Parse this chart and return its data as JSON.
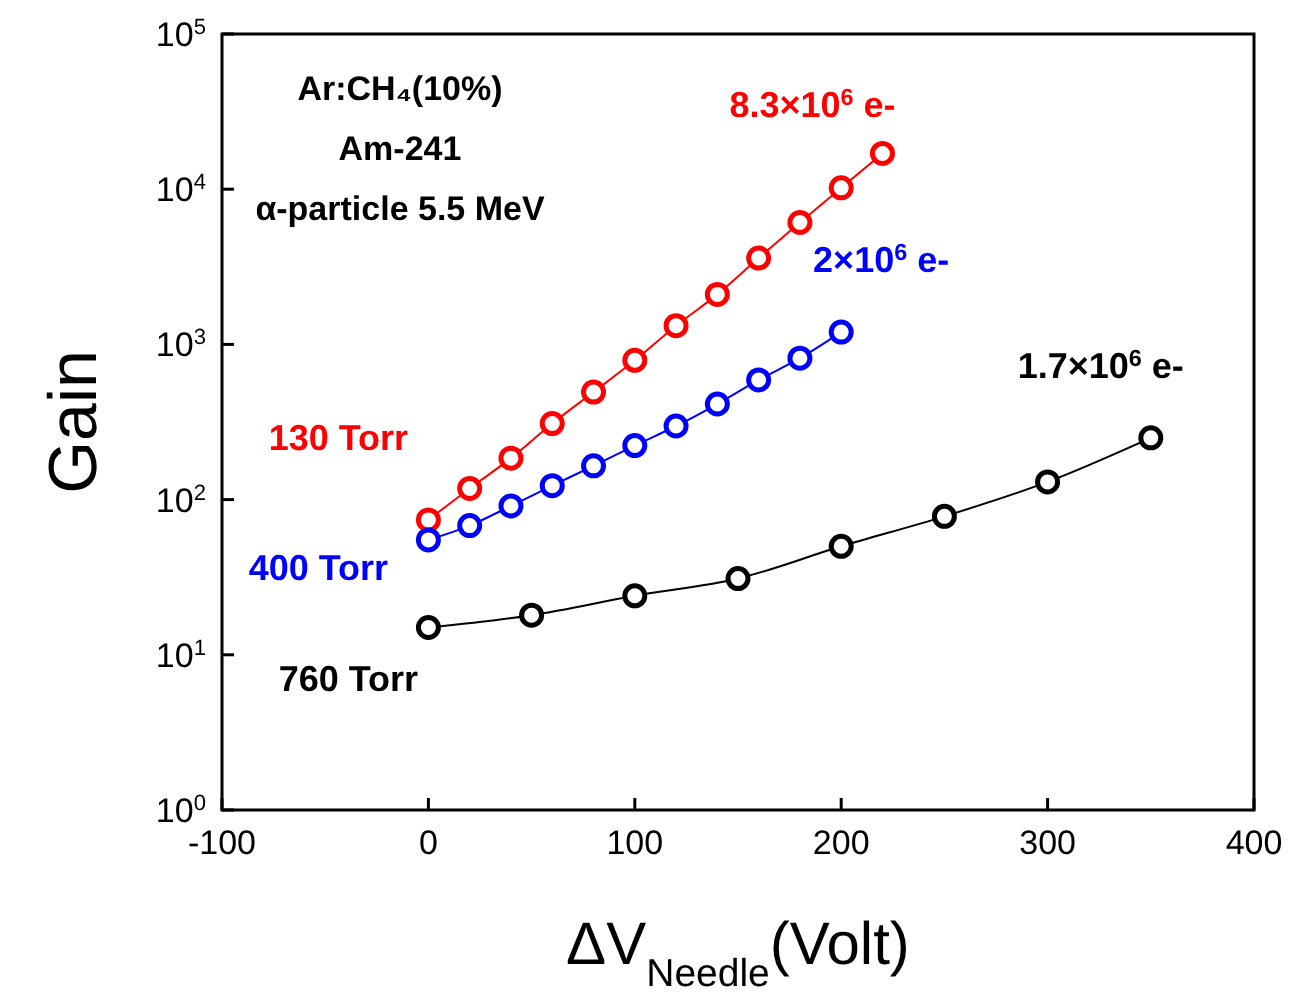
{
  "chart_data": {
    "type": "line",
    "xlabel": "ΔV$_{Needle}$(Volt)",
    "ylabel": "Gain",
    "log": "y",
    "marker": "circle",
    "line_style": "solid",
    "grid": false,
    "xlim": [
      -100,
      400
    ],
    "xticks": [
      -100,
      0,
      100,
      200,
      300,
      400
    ],
    "ylim": [
      1,
      100000
    ],
    "yticks": [
      {
        "value": 1,
        "label": "10$^{0}$"
      },
      {
        "value": 10,
        "label": "10$^{1}$"
      },
      {
        "value": 100,
        "label": "10$^{2}$"
      },
      {
        "value": 1000,
        "label": "10$^{3}$"
      },
      {
        "value": 10000,
        "label": "10$^{4}$"
      },
      {
        "value": 100000,
        "label": "10$^{5}$"
      }
    ],
    "series": [
      {
        "name": "130 Torr",
        "color": "#ff0000",
        "x": [
          0,
          20,
          40,
          60,
          80,
          100,
          120,
          140,
          160,
          180,
          200,
          220
        ],
        "values": [
          74,
          118,
          185,
          309,
          493,
          790,
          1320,
          2100,
          3600,
          6100,
          10200,
          17000
        ]
      },
      {
        "name": "400 Torr",
        "color": "#0000ff",
        "x": [
          0,
          20,
          40,
          60,
          80,
          100,
          120,
          140,
          160,
          180,
          200
        ],
        "values": [
          55,
          68,
          91,
          123,
          165,
          223,
          298,
          413,
          590,
          815,
          1200
        ]
      },
      {
        "name": "760 Torr",
        "color": "#000000",
        "x": [
          0,
          50,
          100,
          150,
          200,
          250,
          300,
          350
        ],
        "values": [
          15,
          18,
          24,
          31,
          50,
          78,
          130,
          250
        ]
      }
    ],
    "annotations": [
      "Ar:CH₄(10%)",
      "Am-241",
      "α-particle 5.5 MeV",
      {
        "text": "8.3×10$^{6}$ e-",
        "x": 220,
        "y": 17000
      },
      {
        "text": "2×10$^{6}$ e-",
        "x": 200,
        "y": 1200
      },
      {
        "text": "1.7×10$^{6}$ e-",
        "x": 350,
        "y": 250
      }
    ]
  }
}
